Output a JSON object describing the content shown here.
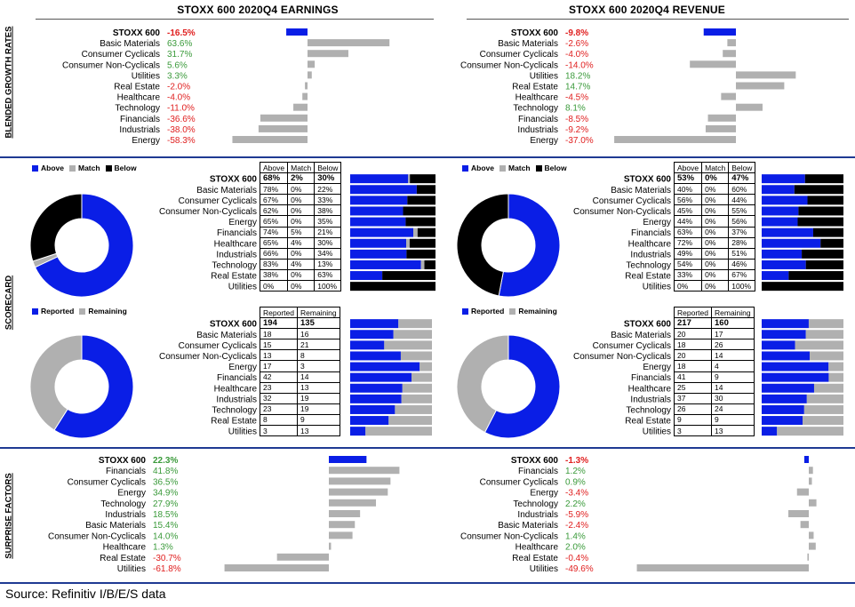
{
  "source": "Source: Refinitiv I/B/E/S data",
  "side_labels": {
    "growth": "BLENDED GROWTH RATES",
    "scorecard": "SCORECARD",
    "surprise": "SURPRISE FACTORS"
  },
  "colors": {
    "blue": "#0a1ee6",
    "gray": "#b0b0b0",
    "black": "#000000",
    "green": "#3a9a3a",
    "red": "#e02020",
    "rule": "#1f3a93"
  },
  "chart_data": [
    {
      "id": "earnings_growth",
      "type": "bar",
      "title": "STOXX 600 2020Q4 EARNINGS",
      "orientation": "horizontal",
      "categories": [
        "STOXX 600",
        "Basic Materials",
        "Consumer Cyclicals",
        "Consumer Non-Cyclicals",
        "Utilities",
        "Real Estate",
        "Healthcare",
        "Technology",
        "Financials",
        "Industrials",
        "Energy"
      ],
      "labels": [
        "-16.5%",
        "63.6%",
        "31.7%",
        "5.6%",
        "3.3%",
        "-2.0%",
        "-4.0%",
        "-11.0%",
        "-36.6%",
        "-38.0%",
        "-58.3%"
      ],
      "values": [
        -16.5,
        63.6,
        31.7,
        5.6,
        3.3,
        -2.0,
        -4.0,
        -11.0,
        -36.6,
        -38.0,
        -58.3
      ]
    },
    {
      "id": "revenue_growth",
      "type": "bar",
      "title": "STOXX 600 2020Q4 REVENUE",
      "orientation": "horizontal",
      "categories": [
        "STOXX 600",
        "Basic Materials",
        "Consumer Cyclicals",
        "Consumer Non-Cyclicals",
        "Utilities",
        "Real Estate",
        "Healthcare",
        "Technology",
        "Financials",
        "Industrials",
        "Energy"
      ],
      "labels": [
        "-9.8%",
        "-2.6%",
        "-4.0%",
        "-14.0%",
        "18.2%",
        "14.7%",
        "-4.5%",
        "8.1%",
        "-8.5%",
        "-9.2%",
        "-37.0%"
      ],
      "values": [
        -9.8,
        -2.6,
        -4.0,
        -14.0,
        18.2,
        14.7,
        -4.5,
        8.1,
        -8.5,
        -9.2,
        -37.0
      ]
    },
    {
      "id": "earnings_scorecard",
      "type": "table",
      "legend": [
        "Above",
        "Match",
        "Below"
      ],
      "columns": [
        "Above",
        "Match",
        "Below"
      ],
      "rows": [
        [
          "STOXX 600",
          "68%",
          "2%",
          "30%"
        ],
        [
          "Basic Materials",
          "78%",
          "0%",
          "22%"
        ],
        [
          "Consumer Cyclicals",
          "67%",
          "0%",
          "33%"
        ],
        [
          "Consumer Non-Cyclicals",
          "62%",
          "0%",
          "38%"
        ],
        [
          "Energy",
          "65%",
          "0%",
          "35%"
        ],
        [
          "Financials",
          "74%",
          "5%",
          "21%"
        ],
        [
          "Healthcare",
          "65%",
          "4%",
          "30%"
        ],
        [
          "Industrials",
          "66%",
          "0%",
          "34%"
        ],
        [
          "Technology",
          "83%",
          "4%",
          "13%"
        ],
        [
          "Real Estate",
          "38%",
          "0%",
          "63%"
        ],
        [
          "Utilities",
          "0%",
          "0%",
          "100%"
        ]
      ],
      "pie": [
        68,
        2,
        30
      ]
    },
    {
      "id": "revenue_scorecard",
      "type": "table",
      "legend": [
        "Above",
        "Match",
        "Below"
      ],
      "columns": [
        "Above",
        "Match",
        "Below"
      ],
      "rows": [
        [
          "STOXX 600",
          "53%",
          "0%",
          "47%"
        ],
        [
          "Basic Materials",
          "40%",
          "0%",
          "60%"
        ],
        [
          "Consumer Cyclicals",
          "56%",
          "0%",
          "44%"
        ],
        [
          "Consumer Non-Cyclicals",
          "45%",
          "0%",
          "55%"
        ],
        [
          "Energy",
          "44%",
          "0%",
          "56%"
        ],
        [
          "Financials",
          "63%",
          "0%",
          "37%"
        ],
        [
          "Healthcare",
          "72%",
          "0%",
          "28%"
        ],
        [
          "Industrials",
          "49%",
          "0%",
          "51%"
        ],
        [
          "Technology",
          "54%",
          "0%",
          "46%"
        ],
        [
          "Real Estate",
          "33%",
          "0%",
          "67%"
        ],
        [
          "Utilities",
          "0%",
          "0%",
          "100%"
        ]
      ],
      "pie": [
        53,
        0,
        47
      ]
    },
    {
      "id": "earnings_reported",
      "type": "table",
      "legend": [
        "Reported",
        "Remaining"
      ],
      "columns": [
        "Reported",
        "Remaining"
      ],
      "rows": [
        [
          "STOXX 600",
          "194",
          "135"
        ],
        [
          "Basic Materials",
          "18",
          "16"
        ],
        [
          "Consumer Cyclicals",
          "15",
          "21"
        ],
        [
          "Consumer Non-Cyclicals",
          "13",
          "8"
        ],
        [
          "Energy",
          "17",
          "3"
        ],
        [
          "Financials",
          "42",
          "14"
        ],
        [
          "Healthcare",
          "23",
          "13"
        ],
        [
          "Industrials",
          "32",
          "19"
        ],
        [
          "Technology",
          "23",
          "19"
        ],
        [
          "Real Estate",
          "8",
          "9"
        ],
        [
          "Utilities",
          "3",
          "13"
        ]
      ],
      "pie": [
        194,
        135
      ]
    },
    {
      "id": "revenue_reported",
      "type": "table",
      "legend": [
        "Reported",
        "Remaining"
      ],
      "columns": [
        "Reported",
        "Remaining"
      ],
      "rows": [
        [
          "STOXX 600",
          "217",
          "160"
        ],
        [
          "Basic Materials",
          "20",
          "17"
        ],
        [
          "Consumer Cyclicals",
          "18",
          "26"
        ],
        [
          "Consumer Non-Cyclicals",
          "20",
          "14"
        ],
        [
          "Energy",
          "18",
          "4"
        ],
        [
          "Financials",
          "41",
          "9"
        ],
        [
          "Healthcare",
          "25",
          "14"
        ],
        [
          "Industrials",
          "37",
          "30"
        ],
        [
          "Technology",
          "26",
          "24"
        ],
        [
          "Real Estate",
          "9",
          "9"
        ],
        [
          "Utilities",
          "3",
          "13"
        ]
      ],
      "pie": [
        217,
        160
      ]
    },
    {
      "id": "earnings_surprise",
      "type": "bar",
      "orientation": "horizontal",
      "categories": [
        "STOXX 600",
        "Financials",
        "Consumer Cyclicals",
        "Energy",
        "Technology",
        "Industrials",
        "Basic Materials",
        "Consumer Non-Cyclicals",
        "Healthcare",
        "Real Estate",
        "Utilities"
      ],
      "labels": [
        "22.3%",
        "41.8%",
        "36.5%",
        "34.9%",
        "27.9%",
        "18.5%",
        "15.4%",
        "14.0%",
        "1.3%",
        "-30.7%",
        "-61.8%"
      ],
      "values": [
        22.3,
        41.8,
        36.5,
        34.9,
        27.9,
        18.5,
        15.4,
        14.0,
        1.3,
        -30.7,
        -61.8
      ]
    },
    {
      "id": "revenue_surprise",
      "type": "bar",
      "orientation": "horizontal",
      "categories": [
        "STOXX 600",
        "Financials",
        "Consumer Cyclicals",
        "Energy",
        "Technology",
        "Industrials",
        "Basic Materials",
        "Consumer Non-Cyclicals",
        "Healthcare",
        "Real Estate",
        "Utilities"
      ],
      "labels": [
        "-1.3%",
        "1.2%",
        "0.9%",
        "-3.4%",
        "2.2%",
        "-5.9%",
        "-2.4%",
        "1.4%",
        "2.0%",
        "-0.4%",
        "-49.6%"
      ],
      "values": [
        -1.3,
        1.2,
        0.9,
        -3.4,
        2.2,
        -5.9,
        -2.4,
        1.4,
        2.0,
        -0.4,
        -49.6
      ]
    }
  ]
}
